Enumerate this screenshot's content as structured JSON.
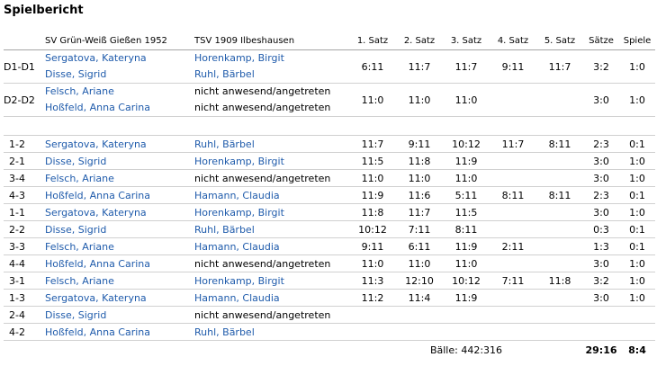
{
  "title": "Spielbericht",
  "headers": {
    "team1": "SV Grün-Weiß Gießen 1952",
    "team2": "TSV 1909 Ilbeshausen",
    "sets": [
      "1. Satz",
      "2. Satz",
      "3. Satz",
      "4. Satz",
      "5. Satz"
    ],
    "saetze": "Sätze",
    "spiele": "Spiele"
  },
  "doubles": [
    {
      "label": "D1-D1",
      "p1": [
        "Sergatova, Kateryna",
        "Disse, Sigrid"
      ],
      "p2": [
        "Horenkamp, Birgit",
        "Ruhl, Bärbel"
      ],
      "p2_linked": true,
      "sets": [
        "6:11",
        "11:7",
        "11:7",
        "9:11",
        "11:7"
      ],
      "saetze": "3:2",
      "spiele": "1:0"
    },
    {
      "label": "D2-D2",
      "p1": [
        "Felsch, Ariane",
        "Hoßfeld, Anna Carina"
      ],
      "p2": [
        "nicht anwesend/angetreten",
        "nicht anwesend/angetreten"
      ],
      "p2_linked": false,
      "sets": [
        "11:0",
        "11:0",
        "11:0",
        "",
        ""
      ],
      "saetze": "3:0",
      "spiele": "1:0"
    }
  ],
  "singles": [
    {
      "label": "1-2",
      "p1": "Sergatova, Kateryna",
      "p2": "Ruhl, Bärbel",
      "p2_linked": true,
      "sets": [
        "11:7",
        "9:11",
        "10:12",
        "11:7",
        "8:11"
      ],
      "saetze": "2:3",
      "spiele": "0:1"
    },
    {
      "label": "2-1",
      "p1": "Disse, Sigrid",
      "p2": "Horenkamp, Birgit",
      "p2_linked": true,
      "sets": [
        "11:5",
        "11:8",
        "11:9",
        "",
        ""
      ],
      "saetze": "3:0",
      "spiele": "1:0"
    },
    {
      "label": "3-4",
      "p1": "Felsch, Ariane",
      "p2": "nicht anwesend/angetreten",
      "p2_linked": false,
      "sets": [
        "11:0",
        "11:0",
        "11:0",
        "",
        ""
      ],
      "saetze": "3:0",
      "spiele": "1:0"
    },
    {
      "label": "4-3",
      "p1": "Hoßfeld, Anna Carina",
      "p2": "Hamann, Claudia",
      "p2_linked": true,
      "sets": [
        "11:9",
        "11:6",
        "5:11",
        "8:11",
        "8:11"
      ],
      "saetze": "2:3",
      "spiele": "0:1"
    },
    {
      "label": "1-1",
      "p1": "Sergatova, Kateryna",
      "p2": "Horenkamp, Birgit",
      "p2_linked": true,
      "sets": [
        "11:8",
        "11:7",
        "11:5",
        "",
        ""
      ],
      "saetze": "3:0",
      "spiele": "1:0"
    },
    {
      "label": "2-2",
      "p1": "Disse, Sigrid",
      "p2": "Ruhl, Bärbel",
      "p2_linked": true,
      "sets": [
        "10:12",
        "7:11",
        "8:11",
        "",
        ""
      ],
      "saetze": "0:3",
      "spiele": "0:1"
    },
    {
      "label": "3-3",
      "p1": "Felsch, Ariane",
      "p2": "Hamann, Claudia",
      "p2_linked": true,
      "sets": [
        "9:11",
        "6:11",
        "11:9",
        "2:11",
        ""
      ],
      "saetze": "1:3",
      "spiele": "0:1"
    },
    {
      "label": "4-4",
      "p1": "Hoßfeld, Anna Carina",
      "p2": "nicht anwesend/angetreten",
      "p2_linked": false,
      "sets": [
        "11:0",
        "11:0",
        "11:0",
        "",
        ""
      ],
      "saetze": "3:0",
      "spiele": "1:0"
    },
    {
      "label": "3-1",
      "p1": "Felsch, Ariane",
      "p2": "Horenkamp, Birgit",
      "p2_linked": true,
      "sets": [
        "11:3",
        "12:10",
        "10:12",
        "7:11",
        "11:8"
      ],
      "saetze": "3:2",
      "spiele": "1:0"
    },
    {
      "label": "1-3",
      "p1": "Sergatova, Kateryna",
      "p2": "Hamann, Claudia",
      "p2_linked": true,
      "sets": [
        "11:2",
        "11:4",
        "11:9",
        "",
        ""
      ],
      "saetze": "3:0",
      "spiele": "1:0"
    },
    {
      "label": "2-4",
      "p1": "Disse, Sigrid",
      "p2": "nicht anwesend/angetreten",
      "p2_linked": false,
      "sets": [
        "",
        "",
        "",
        "",
        ""
      ],
      "saetze": "",
      "spiele": ""
    },
    {
      "label": "4-2",
      "p1": "Hoßfeld, Anna Carina",
      "p2": "Ruhl, Bärbel",
      "p2_linked": true,
      "sets": [
        "",
        "",
        "",
        "",
        ""
      ],
      "saetze": "",
      "spiele": ""
    }
  ],
  "totals": {
    "baelle": "Bälle: 442:316",
    "saetze": "29:16",
    "spiele": "8:4"
  },
  "colors": {
    "link": "#1f5bab",
    "row_divider": "#d0d0d0",
    "header_divider": "#a5a5a5"
  }
}
